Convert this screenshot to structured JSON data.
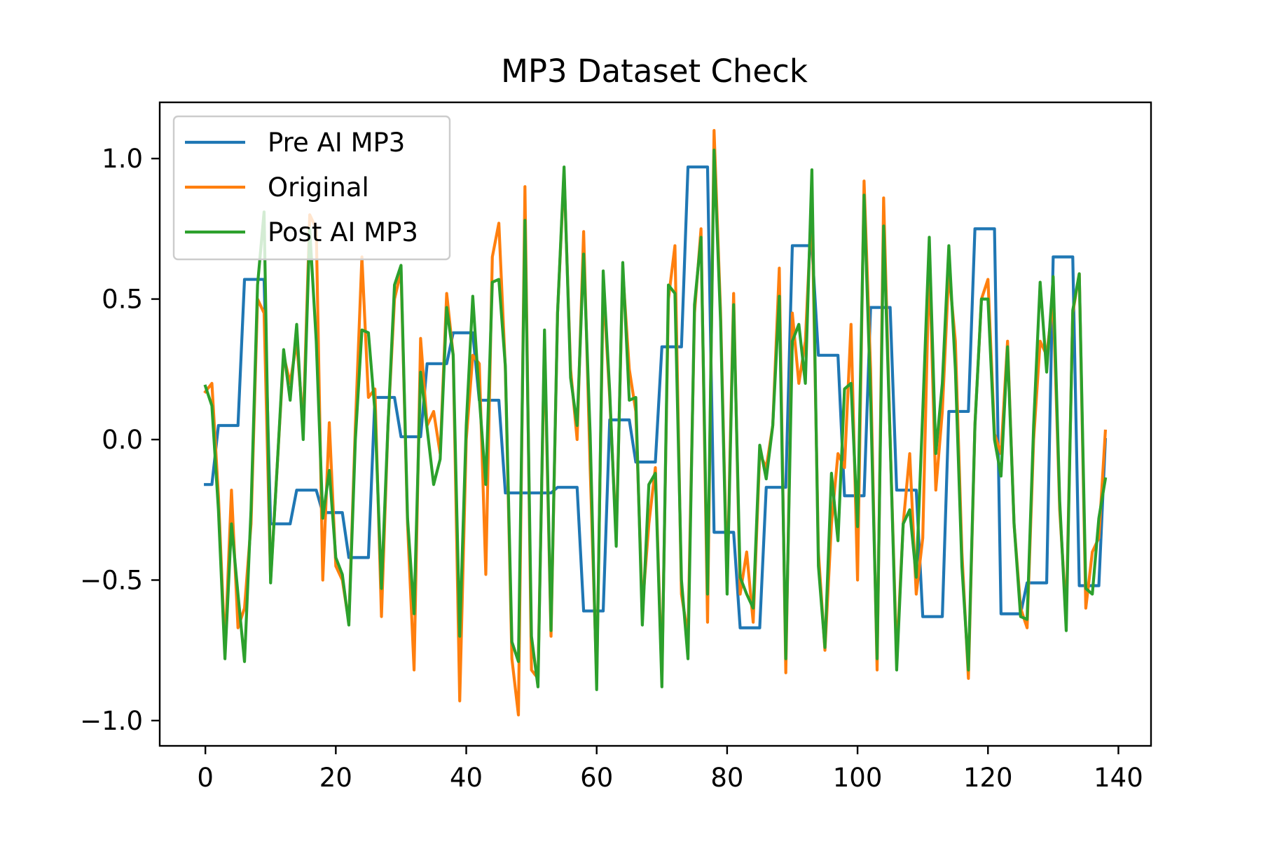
{
  "chart_data": {
    "type": "line",
    "title": "MP3 Dataset Check",
    "xlabel": "",
    "ylabel": "",
    "xlim": [
      -7,
      145
    ],
    "ylim": [
      -1.09,
      1.2
    ],
    "xticks": [
      0,
      20,
      40,
      60,
      80,
      100,
      120,
      140
    ],
    "yticks": [
      -1.0,
      -0.5,
      0.0,
      0.5,
      1.0
    ],
    "xtick_labels": [
      "0",
      "20",
      "40",
      "60",
      "80",
      "100",
      "120",
      "140"
    ],
    "ytick_labels": [
      "−1.0",
      "−0.5",
      "0.0",
      "0.5",
      "1.0"
    ],
    "grid": false,
    "legend_position": "top-left",
    "series": [
      {
        "name": "Pre AI MP3",
        "color": "#1f77b4",
        "x": [
          0,
          1,
          2,
          3,
          4,
          5,
          6,
          7,
          8,
          9,
          10,
          11,
          12,
          13,
          14,
          15,
          16,
          17,
          18,
          19,
          20,
          21,
          22,
          23,
          24,
          25,
          26,
          27,
          28,
          29,
          30,
          31,
          32,
          33,
          34,
          35,
          36,
          37,
          38,
          39,
          40,
          41,
          42,
          43,
          44,
          45,
          46,
          47,
          48,
          49,
          50,
          51,
          52,
          53,
          54,
          55,
          56,
          57,
          58,
          59,
          60,
          61,
          62,
          63,
          64,
          65,
          66,
          67,
          68,
          69,
          70,
          71,
          72,
          73,
          74,
          75,
          76,
          77,
          78,
          79,
          80,
          81,
          82,
          83,
          84,
          85,
          86,
          87,
          88,
          89,
          90,
          91,
          92,
          93,
          94,
          95,
          96,
          97,
          98,
          99,
          100,
          101,
          102,
          103,
          104,
          105,
          106,
          107,
          108,
          109,
          110,
          111,
          112,
          113,
          114,
          115,
          116,
          117,
          118,
          119,
          120,
          121,
          122,
          123,
          124,
          125,
          126,
          127,
          128,
          129,
          130,
          131,
          132,
          133,
          134,
          135,
          136,
          137,
          138
        ],
        "y": [
          -0.16,
          -0.16,
          0.05,
          0.05,
          0.05,
          0.05,
          0.57,
          0.57,
          0.57,
          0.57,
          -0.3,
          -0.3,
          -0.3,
          -0.3,
          -0.18,
          -0.18,
          -0.18,
          -0.18,
          -0.26,
          -0.26,
          -0.26,
          -0.26,
          -0.42,
          -0.42,
          -0.42,
          -0.42,
          0.15,
          0.15,
          0.15,
          0.15,
          0.01,
          0.01,
          0.01,
          0.01,
          0.27,
          0.27,
          0.27,
          0.27,
          0.38,
          0.38,
          0.38,
          0.38,
          0.14,
          0.14,
          0.14,
          0.14,
          -0.19,
          -0.19,
          -0.19,
          -0.19,
          -0.19,
          -0.19,
          -0.19,
          -0.19,
          -0.17,
          -0.17,
          -0.17,
          -0.17,
          -0.61,
          -0.61,
          -0.61,
          -0.61,
          0.07,
          0.07,
          0.07,
          0.07,
          -0.08,
          -0.08,
          -0.08,
          -0.08,
          0.33,
          0.33,
          0.33,
          0.33,
          0.97,
          0.97,
          0.97,
          0.97,
          -0.33,
          -0.33,
          -0.33,
          -0.33,
          -0.67,
          -0.67,
          -0.67,
          -0.67,
          -0.17,
          -0.17,
          -0.17,
          -0.17,
          0.69,
          0.69,
          0.69,
          0.69,
          0.3,
          0.3,
          0.3,
          0.3,
          -0.2,
          -0.2,
          -0.2,
          -0.2,
          0.47,
          0.47,
          0.47,
          0.47,
          -0.18,
          -0.18,
          -0.18,
          -0.18,
          -0.63,
          -0.63,
          -0.63,
          -0.63,
          0.1,
          0.1,
          0.1,
          0.1,
          0.75,
          0.75,
          0.75,
          0.75,
          -0.62,
          -0.62,
          -0.62,
          -0.62,
          -0.51,
          -0.51,
          -0.51,
          -0.51,
          0.65,
          0.65,
          0.65,
          0.65,
          -0.52,
          -0.52,
          -0.52,
          -0.52,
          0.0
        ]
      },
      {
        "name": "Original",
        "color": "#ff7f0e",
        "x": [
          0,
          1,
          2,
          3,
          4,
          5,
          6,
          7,
          8,
          9,
          10,
          11,
          12,
          13,
          14,
          15,
          16,
          17,
          18,
          19,
          20,
          21,
          22,
          23,
          24,
          25,
          26,
          27,
          28,
          29,
          30,
          31,
          32,
          33,
          34,
          35,
          36,
          37,
          38,
          39,
          40,
          41,
          42,
          43,
          44,
          45,
          46,
          47,
          48,
          49,
          50,
          51,
          52,
          53,
          54,
          55,
          56,
          57,
          58,
          59,
          60,
          61,
          62,
          63,
          64,
          65,
          66,
          67,
          68,
          69,
          70,
          71,
          72,
          73,
          74,
          75,
          76,
          77,
          78,
          79,
          80,
          81,
          82,
          83,
          84,
          85,
          86,
          87,
          88,
          89,
          90,
          91,
          92,
          93,
          94,
          95,
          96,
          97,
          98,
          99,
          100,
          101,
          102,
          103,
          104,
          105,
          106,
          107,
          108,
          109,
          110,
          111,
          112,
          113,
          114,
          115,
          116,
          117,
          118,
          119,
          120,
          121,
          122,
          123,
          124,
          125,
          126,
          127,
          128,
          129,
          130,
          131,
          132,
          133,
          134,
          135,
          136,
          137,
          138
        ],
        "y": [
          0.17,
          0.2,
          -0.2,
          -0.75,
          -0.18,
          -0.67,
          -0.6,
          -0.3,
          0.5,
          0.45,
          -0.5,
          -0.1,
          0.3,
          0.2,
          0.35,
          0.05,
          0.8,
          0.75,
          -0.5,
          0.06,
          -0.45,
          -0.5,
          -0.65,
          0.05,
          0.65,
          0.15,
          0.18,
          -0.63,
          0.05,
          0.5,
          0.6,
          -0.3,
          -0.82,
          0.36,
          0.05,
          0.1,
          -0.05,
          0.52,
          0.3,
          -0.93,
          0.0,
          0.3,
          0.27,
          -0.48,
          0.65,
          0.77,
          0.25,
          -0.78,
          -0.98,
          0.9,
          -0.82,
          -0.85,
          0.35,
          -0.7,
          0.45,
          0.95,
          0.25,
          0.0,
          0.74,
          -0.1,
          -0.85,
          0.55,
          0.15,
          -0.35,
          0.6,
          0.25,
          0.1,
          -0.6,
          -0.3,
          -0.1,
          -0.85,
          0.5,
          0.69,
          -0.55,
          -0.7,
          0.45,
          0.75,
          -0.65,
          1.1,
          0.45,
          -0.52,
          0.52,
          -0.55,
          -0.4,
          -0.65,
          -0.05,
          -0.1,
          0.05,
          0.61,
          -0.83,
          0.45,
          0.2,
          0.35,
          0.85,
          -0.4,
          -0.75,
          -0.3,
          -0.05,
          -0.1,
          0.41,
          -0.5,
          0.92,
          0.25,
          -0.82,
          0.86,
          0.0,
          -0.78,
          -0.3,
          -0.05,
          -0.55,
          -0.35,
          0.65,
          -0.18,
          0.1,
          0.6,
          0.35,
          -0.4,
          -0.85,
          0.05,
          0.5,
          0.57,
          0.02,
          -0.05,
          0.35,
          -0.3,
          -0.6,
          -0.67,
          0.0,
          0.35,
          0.3,
          0.5,
          -0.25,
          -0.63,
          0.45,
          0.59,
          -0.6,
          -0.4,
          -0.35,
          0.03
        ]
      },
      {
        "name": "Post AI MP3",
        "color": "#2ca02c",
        "x": [
          0,
          1,
          2,
          3,
          4,
          5,
          6,
          7,
          8,
          9,
          10,
          11,
          12,
          13,
          14,
          15,
          16,
          17,
          18,
          19,
          20,
          21,
          22,
          23,
          24,
          25,
          26,
          27,
          28,
          29,
          30,
          31,
          32,
          33,
          34,
          35,
          36,
          37,
          38,
          39,
          40,
          41,
          42,
          43,
          44,
          45,
          46,
          47,
          48,
          49,
          50,
          51,
          52,
          53,
          54,
          55,
          56,
          57,
          58,
          59,
          60,
          61,
          62,
          63,
          64,
          65,
          66,
          67,
          68,
          69,
          70,
          71,
          72,
          73,
          74,
          75,
          76,
          77,
          78,
          79,
          80,
          81,
          82,
          83,
          84,
          85,
          86,
          87,
          88,
          89,
          90,
          91,
          92,
          93,
          94,
          95,
          96,
          97,
          98,
          99,
          100,
          101,
          102,
          103,
          104,
          105,
          106,
          107,
          108,
          109,
          110,
          111,
          112,
          113,
          114,
          115,
          116,
          117,
          118,
          119,
          120,
          121,
          122,
          123,
          124,
          125,
          126,
          127,
          128,
          129,
          130,
          131,
          132,
          133,
          134,
          135,
          136,
          137,
          138
        ],
        "y": [
          0.19,
          0.12,
          -0.25,
          -0.78,
          -0.3,
          -0.55,
          -0.79,
          -0.25,
          0.55,
          0.81,
          -0.51,
          -0.1,
          0.32,
          0.14,
          0.41,
          0.0,
          0.75,
          0.35,
          -0.28,
          -0.11,
          -0.42,
          -0.48,
          -0.66,
          0.0,
          0.39,
          0.38,
          0.1,
          -0.53,
          0.05,
          0.55,
          0.62,
          -0.28,
          -0.62,
          0.24,
          0.04,
          -0.16,
          -0.07,
          0.47,
          0.3,
          -0.7,
          0.05,
          0.51,
          0.15,
          -0.16,
          0.56,
          0.57,
          0.26,
          -0.72,
          -0.79,
          0.78,
          -0.7,
          -0.88,
          0.39,
          -0.68,
          0.45,
          0.97,
          0.22,
          0.05,
          0.66,
          0.02,
          -0.89,
          0.6,
          0.17,
          -0.38,
          0.63,
          0.14,
          0.15,
          -0.66,
          -0.16,
          -0.12,
          -0.88,
          0.55,
          0.52,
          -0.5,
          -0.78,
          0.48,
          0.72,
          -0.55,
          1.03,
          0.42,
          -0.55,
          0.48,
          -0.49,
          -0.55,
          -0.6,
          -0.02,
          -0.14,
          0.05,
          0.51,
          -0.78,
          0.35,
          0.41,
          0.2,
          0.96,
          -0.45,
          -0.74,
          -0.12,
          -0.36,
          0.18,
          0.2,
          -0.31,
          0.87,
          0.15,
          -0.78,
          0.76,
          0.0,
          -0.82,
          -0.3,
          -0.25,
          -0.49,
          0.1,
          0.72,
          -0.05,
          0.2,
          0.69,
          0.25,
          -0.45,
          -0.82,
          0.05,
          0.5,
          0.5,
          0.0,
          -0.13,
          0.33,
          -0.3,
          -0.63,
          -0.64,
          0.05,
          0.56,
          0.24,
          0.58,
          -0.22,
          -0.68,
          0.46,
          0.59,
          -0.53,
          -0.55,
          -0.28,
          -0.14
        ]
      }
    ]
  }
}
